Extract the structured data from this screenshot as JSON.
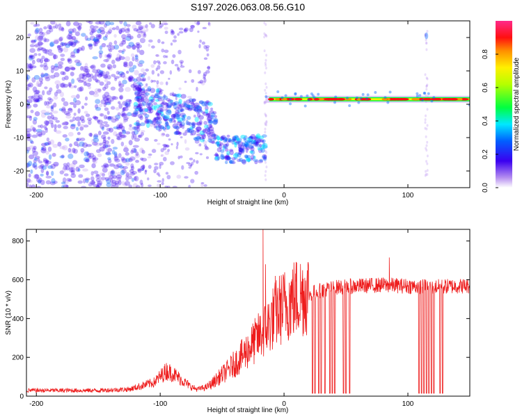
{
  "title": "S197.2026.063.08.56.G10",
  "colors": {
    "snr_line": "#ee1c1c",
    "spectrogram_low": "#e6d2f4",
    "spectrogram_mid": "#7a2be0"
  },
  "chart_data": [
    {
      "type": "heatmap",
      "xlabel": "Height of straight line (km)",
      "ylabel": "Frequency (Hz)",
      "xlim": [
        -208,
        150
      ],
      "ylim": [
        -25,
        25
      ],
      "xticks": [
        -200,
        -100,
        0,
        100
      ],
      "xtick_labels": [
        "-200",
        "-100",
        "0",
        "100"
      ],
      "yticks": [
        -20,
        -10,
        0,
        10,
        20
      ],
      "ytick_labels": [
        "-20",
        "-10",
        "0",
        "10",
        "20"
      ],
      "colorbar": {
        "label": "Normalized spectral amplitude",
        "range": [
          0,
          1
        ],
        "ticks": [
          0.0,
          0.2,
          0.4,
          0.6,
          0.8
        ],
        "tick_labels": [
          "0.0",
          "0.2",
          "0.4",
          "0.6",
          "0.8"
        ],
        "colormap": "white-purple-blue-cyan-green-yellow-orange-red-pink"
      },
      "features": [
        {
          "x_range": [
            -208,
            -120
          ],
          "freq_range": [
            -25,
            25
          ],
          "amplitude": 0.12,
          "kind": "scattered noise"
        },
        {
          "x_range": [
            -120,
            -60
          ],
          "freq_center_from": 0,
          "freq_center_to": -6,
          "amplitude": 0.3,
          "kind": "descending cluster"
        },
        {
          "x_range": [
            -55,
            -15
          ],
          "freq_center_from": -13,
          "freq_center_to": -14,
          "amplitude": 0.3,
          "kind": "blob cluster"
        },
        {
          "x_range": [
            -15,
            150
          ],
          "freq": 1.5,
          "amplitude": 0.9,
          "kind": "carrier tone"
        }
      ]
    },
    {
      "type": "line",
      "xlabel": "Height of straight line (km)",
      "ylabel": "SNR (10 * v/v)",
      "xlim": [
        -208,
        150
      ],
      "ylim": [
        0,
        860
      ],
      "xticks": [
        -200,
        -100,
        0,
        100
      ],
      "xtick_labels": [
        "-200",
        "-100",
        "0",
        "100"
      ],
      "yticks": [
        0,
        200,
        400,
        600,
        800
      ],
      "ytick_labels": [
        "0",
        "200",
        "400",
        "600",
        "800"
      ],
      "profile": {
        "x": [
          -208,
          -150,
          -125,
          -105,
          -95,
          -90,
          -85,
          -75,
          -70,
          -62,
          -55,
          -45,
          -35,
          -25,
          -15,
          -5,
          5,
          15,
          25,
          35,
          45,
          60,
          80,
          100,
          120,
          140,
          150
        ],
        "y": [
          25,
          25,
          30,
          60,
          110,
          100,
          80,
          40,
          30,
          40,
          80,
          130,
          190,
          260,
          330,
          420,
          470,
          500,
          530,
          545,
          555,
          560,
          565,
          560,
          555,
          560,
          560
        ]
      },
      "spikes": [
        {
          "x": -17,
          "y": 860
        },
        {
          "x": -15,
          "y": 680
        },
        {
          "x": -7,
          "y": 620
        },
        {
          "x": 85,
          "y": 715
        }
      ],
      "dropouts_x": [
        23,
        25,
        28,
        30,
        33,
        37,
        39,
        41,
        48,
        50,
        53,
        109,
        111,
        113,
        115,
        117,
        119,
        121,
        126,
        128
      ]
    }
  ]
}
